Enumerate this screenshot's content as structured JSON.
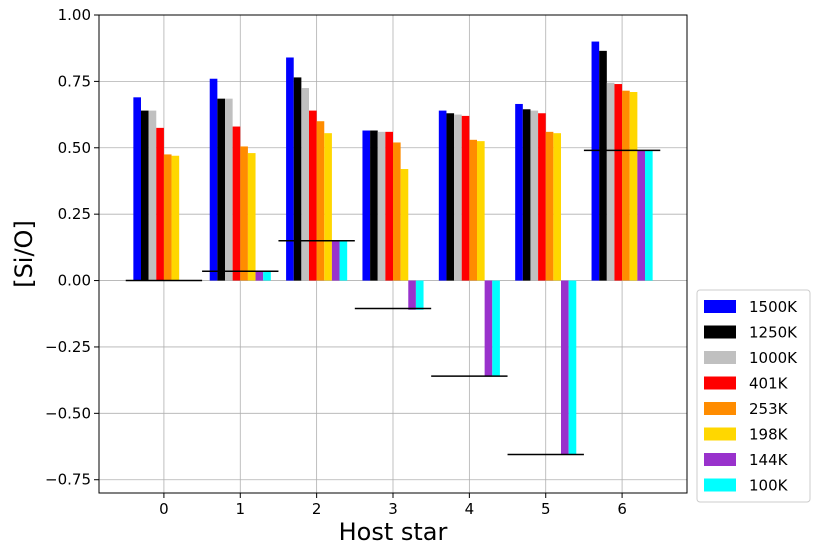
{
  "chart_data": {
    "type": "bar",
    "title": "",
    "xlabel": "Host star",
    "ylabel": "[Si/O]",
    "categories": [
      "0",
      "1",
      "2",
      "3",
      "4",
      "5",
      "6"
    ],
    "ylim": [
      -0.8,
      1.0
    ],
    "yticks": [
      "1.00",
      "0.75",
      "0.50",
      "0.25",
      "0.00",
      "−0.25",
      "−0.50",
      "−0.75"
    ],
    "ytick_values": [
      1.0,
      0.75,
      0.5,
      0.25,
      0.0,
      -0.25,
      -0.5,
      -0.75
    ],
    "grid": true,
    "legend_placement": "right",
    "series": [
      {
        "name": "1500K",
        "color": "#0000ff",
        "values": [
          0.69,
          0.76,
          0.84,
          0.565,
          0.64,
          0.665,
          0.9
        ]
      },
      {
        "name": "1250K",
        "color": "#000000",
        "values": [
          0.64,
          0.685,
          0.765,
          0.565,
          0.63,
          0.645,
          0.865
        ]
      },
      {
        "name": "1000K",
        "color": "#c0c0c0",
        "values": [
          0.64,
          0.685,
          0.725,
          0.56,
          0.625,
          0.64,
          0.745
        ]
      },
      {
        "name": "401K",
        "color": "#ff0000",
        "values": [
          0.575,
          0.58,
          0.64,
          0.56,
          0.62,
          0.63,
          0.74
        ]
      },
      {
        "name": "253K",
        "color": "#ff8c00",
        "values": [
          0.475,
          0.505,
          0.6,
          0.52,
          0.53,
          0.56,
          0.715
        ]
      },
      {
        "name": "198K",
        "color": "#ffd700",
        "values": [
          0.47,
          0.48,
          0.555,
          0.42,
          0.525,
          0.555,
          0.71
        ]
      },
      {
        "name": "144K",
        "color": "#9932cc",
        "values": [
          0.0,
          0.035,
          0.15,
          -0.11,
          -0.36,
          -0.655,
          0.49
        ]
      },
      {
        "name": "100K",
        "color": "#00ffff",
        "values": [
          0.0,
          0.035,
          0.15,
          -0.11,
          -0.36,
          -0.655,
          0.49
        ]
      }
    ],
    "reference_lines": [
      {
        "category": "0",
        "value": 0.0
      },
      {
        "category": "1",
        "value": 0.035
      },
      {
        "category": "2",
        "value": 0.15
      },
      {
        "category": "3",
        "value": -0.105
      },
      {
        "category": "4",
        "value": -0.36
      },
      {
        "category": "5",
        "value": -0.655
      },
      {
        "category": "6",
        "value": 0.49
      }
    ]
  }
}
